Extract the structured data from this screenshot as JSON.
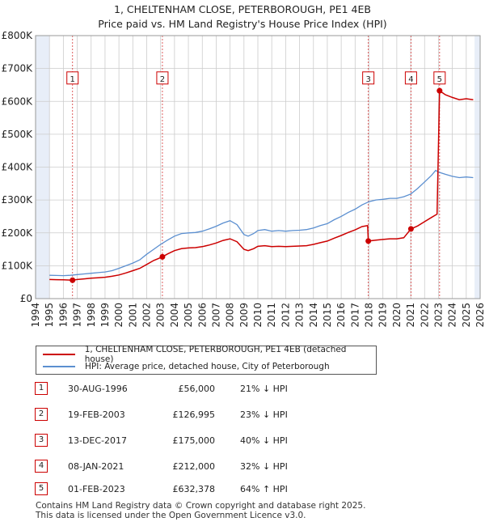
{
  "title_line1": "1, CHELTENHAM CLOSE, PETERBOROUGH, PE1 4EB",
  "title_line2": "Price paid vs. HM Land Registry's House Price Index (HPI)",
  "colors": {
    "property": "#cc0000",
    "hpi": "#5b8fd0",
    "band": "#e8eef8",
    "grid": "#cccccc"
  },
  "chart_data": {
    "type": "line",
    "xlim": [
      1994,
      2026
    ],
    "ylim": [
      0,
      800000
    ],
    "y_ticks": [
      {
        "v": 0,
        "label": "£0"
      },
      {
        "v": 100000,
        "label": "£100K"
      },
      {
        "v": 200000,
        "label": "£200K"
      },
      {
        "v": 300000,
        "label": "£300K"
      },
      {
        "v": 400000,
        "label": "£400K"
      },
      {
        "v": 500000,
        "label": "£500K"
      },
      {
        "v": 600000,
        "label": "£600K"
      },
      {
        "v": 700000,
        "label": "£700K"
      },
      {
        "v": 800000,
        "label": "£800K"
      }
    ],
    "x_ticks": [
      "1994",
      "1995",
      "1996",
      "1997",
      "1998",
      "1999",
      "2000",
      "2001",
      "2002",
      "2003",
      "2004",
      "2005",
      "2006",
      "2007",
      "2008",
      "2009",
      "2010",
      "2011",
      "2012",
      "2013",
      "2014",
      "2015",
      "2016",
      "2017",
      "2018",
      "2019",
      "2020",
      "2021",
      "2022",
      "2023",
      "2024",
      "2025",
      "2026"
    ],
    "data_start": 1995.0,
    "data_end": 2025.6,
    "hpi_series": {
      "name": "HPI: Average price, detached house, City of Peterborough",
      "points": [
        [
          1995.0,
          71000
        ],
        [
          1995.5,
          70500
        ],
        [
          1996.0,
          70000
        ],
        [
          1996.5,
          71000
        ],
        [
          1997.0,
          73000
        ],
        [
          1997.5,
          75000
        ],
        [
          1998.0,
          77000
        ],
        [
          1998.5,
          79000
        ],
        [
          1999.0,
          81000
        ],
        [
          1999.5,
          85000
        ],
        [
          2000.0,
          92000
        ],
        [
          2000.5,
          100000
        ],
        [
          2001.0,
          108000
        ],
        [
          2001.5,
          118000
        ],
        [
          2002.0,
          135000
        ],
        [
          2002.5,
          150000
        ],
        [
          2003.0,
          165000
        ],
        [
          2003.5,
          178000
        ],
        [
          2004.0,
          190000
        ],
        [
          2004.5,
          198000
        ],
        [
          2005.0,
          200000
        ],
        [
          2005.5,
          201000
        ],
        [
          2006.0,
          205000
        ],
        [
          2006.5,
          212000
        ],
        [
          2007.0,
          220000
        ],
        [
          2007.5,
          230000
        ],
        [
          2008.0,
          237000
        ],
        [
          2008.5,
          225000
        ],
        [
          2009.0,
          195000
        ],
        [
          2009.3,
          190000
        ],
        [
          2009.7,
          198000
        ],
        [
          2010.0,
          207000
        ],
        [
          2010.5,
          210000
        ],
        [
          2011.0,
          205000
        ],
        [
          2011.5,
          207000
        ],
        [
          2012.0,
          205000
        ],
        [
          2012.5,
          207000
        ],
        [
          2013.0,
          208000
        ],
        [
          2013.5,
          210000
        ],
        [
          2014.0,
          215000
        ],
        [
          2014.5,
          222000
        ],
        [
          2015.0,
          228000
        ],
        [
          2015.5,
          240000
        ],
        [
          2016.0,
          250000
        ],
        [
          2016.5,
          262000
        ],
        [
          2017.0,
          272000
        ],
        [
          2017.5,
          285000
        ],
        [
          2018.0,
          295000
        ],
        [
          2018.5,
          300000
        ],
        [
          2019.0,
          302000
        ],
        [
          2019.5,
          305000
        ],
        [
          2020.0,
          305000
        ],
        [
          2020.5,
          310000
        ],
        [
          2021.0,
          318000
        ],
        [
          2021.5,
          335000
        ],
        [
          2022.0,
          355000
        ],
        [
          2022.5,
          375000
        ],
        [
          2022.8,
          390000
        ],
        [
          2023.0,
          385000
        ],
        [
          2023.5,
          378000
        ],
        [
          2024.0,
          372000
        ],
        [
          2024.5,
          368000
        ],
        [
          2025.0,
          370000
        ],
        [
          2025.5,
          368000
        ]
      ]
    },
    "property_series": {
      "name": "1, CHELTENHAM CLOSE, PETERBOROUGH, PE1 4EB (detached house)",
      "points": [
        [
          1995.0,
          58000
        ],
        [
          1995.5,
          57500
        ],
        [
          1996.0,
          57000
        ],
        [
          1996.66,
          56000
        ],
        [
          1997.0,
          58000
        ],
        [
          1997.5,
          60000
        ],
        [
          1998.0,
          62000
        ],
        [
          1998.5,
          63500
        ],
        [
          1999.0,
          65000
        ],
        [
          1999.5,
          68000
        ],
        [
          2000.0,
          72000
        ],
        [
          2000.5,
          78000
        ],
        [
          2001.0,
          85000
        ],
        [
          2001.5,
          92000
        ],
        [
          2002.0,
          104000
        ],
        [
          2002.5,
          116000
        ],
        [
          2003.13,
          126995
        ],
        [
          2003.5,
          136000
        ],
        [
          2004.0,
          146000
        ],
        [
          2004.5,
          152000
        ],
        [
          2005.0,
          154000
        ],
        [
          2005.5,
          155000
        ],
        [
          2006.0,
          158000
        ],
        [
          2006.5,
          163000
        ],
        [
          2007.0,
          169000
        ],
        [
          2007.5,
          177000
        ],
        [
          2008.0,
          182000
        ],
        [
          2008.5,
          173000
        ],
        [
          2009.0,
          150000
        ],
        [
          2009.3,
          146000
        ],
        [
          2009.7,
          152000
        ],
        [
          2010.0,
          159000
        ],
        [
          2010.5,
          161000
        ],
        [
          2011.0,
          158000
        ],
        [
          2011.5,
          159000
        ],
        [
          2012.0,
          158000
        ],
        [
          2012.5,
          159000
        ],
        [
          2013.0,
          160000
        ],
        [
          2013.5,
          161000
        ],
        [
          2014.0,
          165000
        ],
        [
          2014.5,
          170000
        ],
        [
          2015.0,
          175000
        ],
        [
          2015.5,
          184000
        ],
        [
          2016.0,
          192000
        ],
        [
          2016.5,
          201000
        ],
        [
          2017.0,
          209000
        ],
        [
          2017.5,
          219000
        ],
        [
          2017.9,
          222000
        ],
        [
          2017.95,
          175000
        ],
        [
          2018.5,
          178000
        ],
        [
          2019.0,
          180000
        ],
        [
          2019.5,
          182000
        ],
        [
          2020.0,
          182000
        ],
        [
          2020.5,
          185000
        ],
        [
          2021.02,
          212000
        ],
        [
          2021.5,
          221000
        ],
        [
          2022.0,
          234000
        ],
        [
          2022.5,
          247000
        ],
        [
          2022.9,
          257000
        ],
        [
          2023.08,
          632378
        ],
        [
          2023.5,
          620000
        ],
        [
          2024.0,
          612000
        ],
        [
          2024.5,
          605000
        ],
        [
          2025.0,
          608000
        ],
        [
          2025.5,
          605000
        ]
      ]
    },
    "sales": [
      {
        "n": "1",
        "t": 1996.66,
        "price": 56000
      },
      {
        "n": "2",
        "t": 2003.13,
        "price": 126995
      },
      {
        "n": "3",
        "t": 2017.95,
        "price": 175000
      },
      {
        "n": "4",
        "t": 2021.02,
        "price": 212000
      },
      {
        "n": "5",
        "t": 2023.08,
        "price": 632378
      }
    ],
    "marker_label_level": 670000
  },
  "legend": {
    "property": "1, CHELTENHAM CLOSE, PETERBOROUGH, PE1 4EB (detached house)",
    "hpi": "HPI: Average price, detached house, City of Peterborough"
  },
  "sales_table": [
    {
      "num": "1",
      "date": "30-AUG-1996",
      "price": "£56,000",
      "hpi": "21% ↓ HPI"
    },
    {
      "num": "2",
      "date": "19-FEB-2003",
      "price": "£126,995",
      "hpi": "23% ↓ HPI"
    },
    {
      "num": "3",
      "date": "13-DEC-2017",
      "price": "£175,000",
      "hpi": "40% ↓ HPI"
    },
    {
      "num": "4",
      "date": "08-JAN-2021",
      "price": "£212,000",
      "hpi": "32% ↓ HPI"
    },
    {
      "num": "5",
      "date": "01-FEB-2023",
      "price": "£632,378",
      "hpi": "64% ↑ HPI"
    }
  ],
  "footer_line1": "Contains HM Land Registry data © Crown copyright and database right 2025.",
  "footer_line2": "This data is licensed under the Open Government Licence v3.0."
}
